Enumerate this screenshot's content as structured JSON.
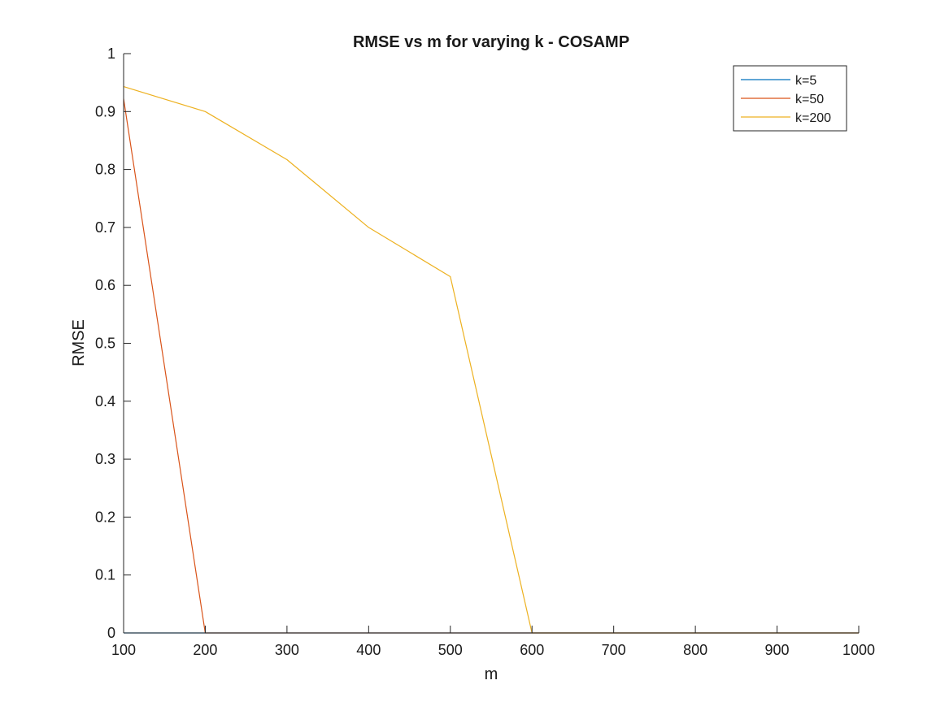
{
  "chart_data": {
    "type": "line",
    "title": "RMSE vs m for varying k - COSAMP",
    "xlabel": "m",
    "ylabel": "RMSE",
    "xlim": [
      100,
      1000
    ],
    "ylim": [
      0,
      1
    ],
    "xticks": [
      100,
      200,
      300,
      400,
      500,
      600,
      700,
      800,
      900,
      1000
    ],
    "yticks": [
      0,
      0.1,
      0.2,
      0.3,
      0.4,
      0.5,
      0.6,
      0.7,
      0.8,
      0.9,
      1
    ],
    "grid": false,
    "legend_position": "top-right",
    "x": [
      100,
      200,
      300,
      400,
      500,
      600,
      700,
      800,
      900,
      1000
    ],
    "series": [
      {
        "name": "k=5",
        "color": "#0072BD",
        "values": [
          0,
          0,
          0,
          0,
          0,
          0,
          0,
          0,
          0,
          0
        ]
      },
      {
        "name": "k=50",
        "color": "#D95319",
        "values": [
          0.922,
          0,
          0,
          0,
          0,
          0,
          0,
          0,
          0,
          0
        ]
      },
      {
        "name": "k=200",
        "color": "#EDB120",
        "values": [
          0.943,
          0.9,
          0.817,
          0.7,
          0.615,
          0,
          0,
          0,
          0,
          0
        ]
      }
    ]
  }
}
